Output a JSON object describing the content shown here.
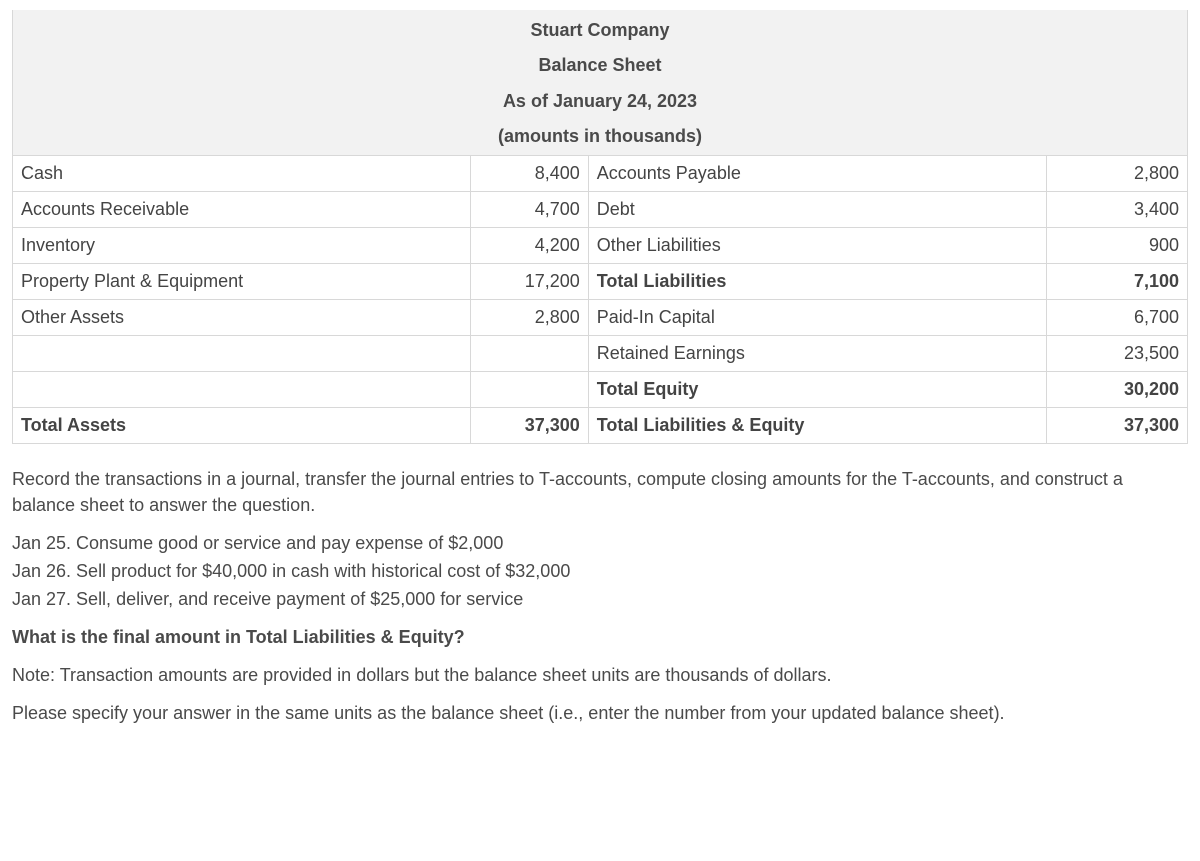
{
  "header": {
    "company": "Stuart Company",
    "title": "Balance Sheet",
    "asof": "As of January 24, 2023",
    "units": "(amounts in thousands)"
  },
  "rows": [
    {
      "left_label": "Cash",
      "left_val": "8,400",
      "right_label": "Accounts Payable",
      "right_val": "2,800",
      "left_bold": false,
      "right_bold": false
    },
    {
      "left_label": "Accounts Receivable",
      "left_val": "4,700",
      "right_label": "Debt",
      "right_val": "3,400",
      "left_bold": false,
      "right_bold": false
    },
    {
      "left_label": "Inventory",
      "left_val": "4,200",
      "right_label": "Other Liabilities",
      "right_val": "900",
      "left_bold": false,
      "right_bold": false
    },
    {
      "left_label": "Property Plant & Equipment",
      "left_val": "17,200",
      "right_label": "Total Liabilities",
      "right_val": "7,100",
      "left_bold": false,
      "right_bold": true
    },
    {
      "left_label": "Other Assets",
      "left_val": "2,800",
      "right_label": "Paid-In Capital",
      "right_val": "6,700",
      "left_bold": false,
      "right_bold": false
    },
    {
      "left_label": "",
      "left_val": "",
      "right_label": "Retained Earnings",
      "right_val": "23,500",
      "left_bold": false,
      "right_bold": false
    },
    {
      "left_label": "",
      "left_val": "",
      "right_label": "Total Equity",
      "right_val": "30,200",
      "left_bold": false,
      "right_bold": true
    },
    {
      "left_label": "Total Assets",
      "left_val": "37,300",
      "right_label": "Total Liabilities & Equity",
      "right_val": "37,300",
      "left_bold": true,
      "right_bold": true
    }
  ],
  "instructions": {
    "para1": "Record the transactions in a journal, transfer the journal entries to T-accounts, compute closing amounts for the T-accounts, and construct a balance sheet to answer the question.",
    "tx1": "Jan 25. Consume good or service and pay expense of $2,000",
    "tx2": "Jan 26. Sell product for $40,000 in cash with historical cost of $32,000",
    "tx3": "Jan 27. Sell, deliver, and receive payment of $25,000 for service",
    "question": "What is the final amount in Total Liabilities & Equity?",
    "note": "Note: Transaction amounts are provided in dollars but the balance sheet units are thousands of dollars.",
    "closing": "Please specify your answer in the same units as the balance sheet (i.e., enter the number from your updated balance sheet)."
  }
}
